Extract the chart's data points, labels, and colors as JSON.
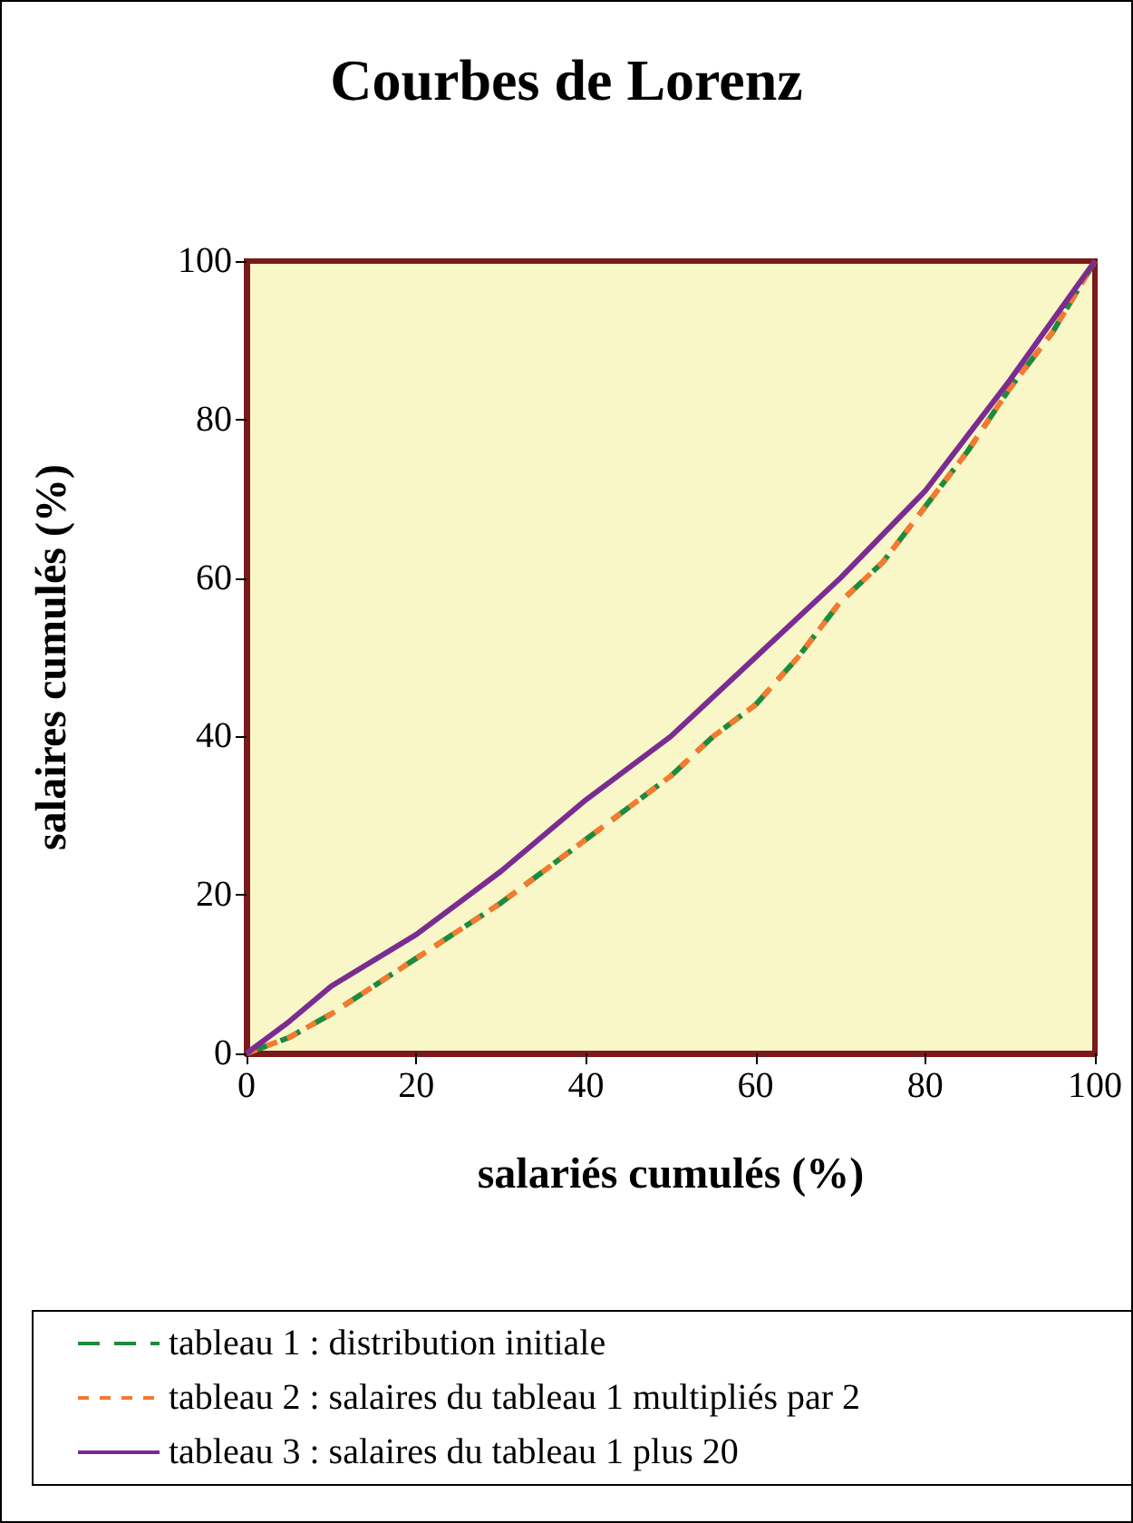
{
  "chart_data": {
    "type": "line",
    "title": "Courbes de Lorenz",
    "xlabel": "salariés cumulés (%)",
    "ylabel": "salaires cumulés (%)",
    "xlim": [
      0,
      100
    ],
    "xticks": [
      0,
      20,
      40,
      60,
      80,
      100
    ],
    "ylim": [
      0,
      100
    ],
    "yticks": [
      0,
      20,
      40,
      60,
      80,
      100
    ],
    "grid": false,
    "legend": "bottom",
    "marker": "none",
    "series": [
      {
        "name": "tableau 1 : distribution initiale",
        "color": "#1e8a3c",
        "line_style": "dashed",
        "x": [
          0,
          5,
          10,
          20,
          30,
          40,
          50,
          55,
          60,
          65,
          70,
          75,
          80,
          85,
          90,
          95,
          100
        ],
        "values": [
          0,
          2,
          5,
          12,
          19,
          27,
          35,
          40,
          44,
          50,
          57,
          62,
          69,
          76,
          84,
          91,
          100
        ]
      },
      {
        "name": "tableau 2 : salaires du tableau 1 multipliés par 2",
        "color": "#f47a30",
        "line_style": "dotted",
        "x": [
          0,
          5,
          10,
          20,
          30,
          40,
          50,
          55,
          60,
          65,
          70,
          75,
          80,
          85,
          90,
          95,
          100
        ],
        "values": [
          0,
          2,
          5,
          12,
          19,
          27,
          35,
          40,
          44,
          50,
          57,
          62,
          69,
          76,
          84,
          91,
          100
        ]
      },
      {
        "name": "tableau 3 : salaires du tableau 1 plus 20",
        "color": "#7b2c91",
        "line_style": "solid",
        "x": [
          0,
          5,
          10,
          20,
          30,
          40,
          50,
          60,
          70,
          80,
          90,
          100
        ],
        "values": [
          0,
          4,
          8.5,
          15,
          23,
          32,
          40,
          50,
          60,
          71,
          85,
          100
        ]
      }
    ]
  }
}
